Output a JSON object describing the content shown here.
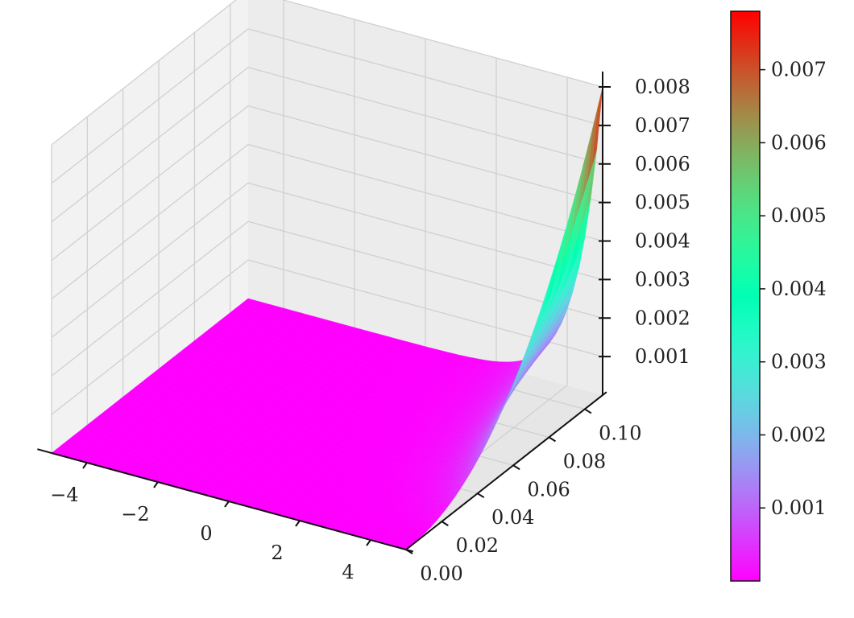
{
  "chart_data": {
    "type": "surface3d",
    "title": "",
    "x_axis": {
      "label": "",
      "range": [
        -5,
        5
      ],
      "ticks": [
        -4,
        -2,
        0,
        2,
        4
      ],
      "tick_labels": [
        "−4",
        "−2",
        "0",
        "2",
        "4"
      ]
    },
    "y_axis": {
      "label": "",
      "range": [
        0,
        0.11
      ],
      "ticks": [
        0.0,
        0.02,
        0.04,
        0.06,
        0.08,
        0.1
      ],
      "tick_labels": [
        "0.00",
        "0.02",
        "0.04",
        "0.06",
        "0.08",
        "0.10"
      ]
    },
    "z_axis": {
      "label": "",
      "range": [
        0,
        0.008
      ],
      "ticks": [
        0.001,
        0.002,
        0.003,
        0.004,
        0.005,
        0.006,
        0.007,
        0.008
      ],
      "tick_labels": [
        "0.001",
        "0.002",
        "0.003",
        "0.004",
        "0.005",
        "0.006",
        "0.007",
        "0.008"
      ]
    },
    "surface": {
      "description_points": [
        {
          "x": -5,
          "y": 0.0,
          "z": 0.0
        },
        {
          "x": -5,
          "y": 0.11,
          "z": 0.0
        },
        {
          "x": 5,
          "y": 0.0,
          "z": 0.0
        },
        {
          "x": 5,
          "y": 0.05,
          "z": 0.001
        },
        {
          "x": 5,
          "y": 0.11,
          "z": 0.008
        }
      ],
      "max_z": 0.008
    },
    "colormap": "rainbow",
    "colorbar": {
      "range": [
        0.0,
        0.0078
      ],
      "ticks": [
        0.001,
        0.002,
        0.003,
        0.004,
        0.005,
        0.006,
        0.007
      ],
      "tick_labels": [
        "0.001",
        "0.002",
        "0.003",
        "0.004",
        "0.005",
        "0.006",
        "0.007"
      ]
    },
    "grid": true
  }
}
